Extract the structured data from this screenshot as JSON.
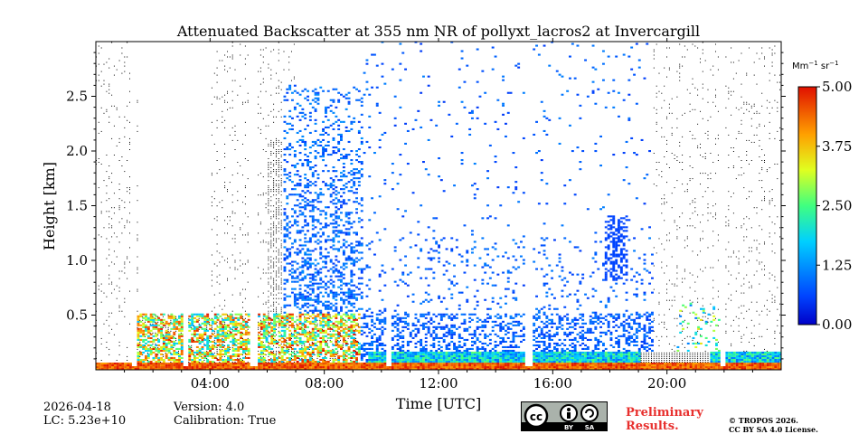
{
  "chart_data": {
    "type": "heatmap",
    "title": "Attenuated Backscatter at 355 nm NR of pollyxt_lacros2 at Invercargill",
    "xlabel": "Time [UTC]",
    "ylabel": "Height [km]",
    "xlim": [
      0,
      24
    ],
    "ylim": [
      0,
      3.0
    ],
    "x_ticks": [
      4,
      8,
      12,
      16,
      20
    ],
    "x_tick_labels": [
      "04:00",
      "08:00",
      "12:00",
      "16:00",
      "20:00"
    ],
    "y_ticks": [
      0.5,
      1.0,
      1.5,
      2.0,
      2.5
    ],
    "y_tick_labels": [
      "0.5",
      "1.0",
      "1.5",
      "2.0",
      "2.5"
    ],
    "colorbar": {
      "label": "Mm-1 sr-1",
      "label_base": "Mm",
      "label_exp1": "−1",
      "label_mid": " sr",
      "label_exp2": "−1",
      "range": [
        0.0,
        5.0
      ],
      "ticks": [
        0.0,
        1.25,
        2.5,
        3.75,
        5.0
      ],
      "tick_labels": [
        "0.00",
        "1.25",
        "2.50",
        "3.75",
        "5.00"
      ],
      "colormap": "jet"
    },
    "features": [
      {
        "name": "near-surface high backscatter layer",
        "t_start": 0,
        "t_end": 24,
        "height_max_km": 0.05,
        "level": 4.0
      },
      {
        "name": "boundary layer aerosol",
        "t_start": 9.5,
        "t_end": 24,
        "height_max_km": 0.15,
        "level": 1.0
      },
      {
        "name": "dense low cloud / aerosol",
        "t_start": 1.2,
        "t_end": 9.0,
        "height_max_km": 0.5,
        "level": 3.5
      },
      {
        "name": "scattered blue signal",
        "t_start": 6.5,
        "t_end": 19.0,
        "height_max_km": 3.0,
        "level": 0.5
      }
    ],
    "data_gaps_hours": [
      1.3,
      3.1,
      5.5,
      10.2,
      15.1,
      21.9
    ]
  },
  "footer": {
    "date": "2026-04-18",
    "lc": "LC: 5.23e+10",
    "version": "Version: 4.0",
    "calibration": "Calibration: True",
    "preliminary": "Preliminary Results.",
    "copyright_line1": "© TROPOS 2026.",
    "copyright_line2": "CC BY SA 4.0 License.",
    "cc_by": "BY",
    "cc_sa": "SA"
  },
  "colors": {
    "background": "#ffffff",
    "preliminary": "#e8302e",
    "cc_badge": "#aab2ab"
  }
}
